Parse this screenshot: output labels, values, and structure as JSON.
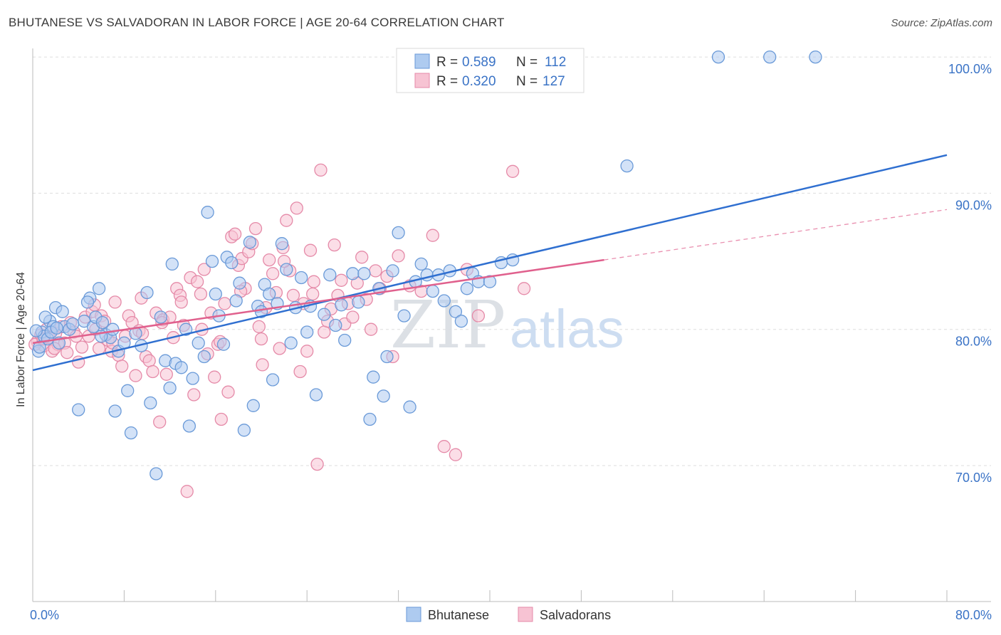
{
  "header": {
    "title": "BHUTANESE VS SALVADORAN IN LABOR FORCE | AGE 20-64 CORRELATION CHART",
    "source": "Source: ZipAtlas.com"
  },
  "watermark": "ZIPatlas",
  "legend_top": {
    "rows": [
      {
        "r_label": "R =",
        "r_value": "0.589",
        "n_label": "N =",
        "n_value": "112"
      },
      {
        "r_label": "R =",
        "r_value": "0.320",
        "n_label": "N =",
        "n_value": "127"
      }
    ]
  },
  "legend_bottom": {
    "items": [
      "Bhutanese",
      "Salvadorans"
    ]
  },
  "colors": {
    "blue_fill": "#aecbf0",
    "blue_stroke": "#6a9ad8",
    "blue_line": "#2f6fd0",
    "pink_fill": "#f7c3d3",
    "pink_stroke": "#e58aa8",
    "pink_line": "#e0608d",
    "tick_text": "#3a73c6",
    "grid": "#dddddd"
  },
  "chart_data": {
    "type": "scatter",
    "title": "BHUTANESE VS SALVADORAN IN LABOR FORCE | AGE 20-64 CORRELATION CHART",
    "xlabel": "",
    "ylabel": "In Labor Force | Age 20-64",
    "xlim": [
      0,
      80
    ],
    "ylim": [
      60,
      102
    ],
    "x_tick_labels": [
      "0.0%",
      "80.0%"
    ],
    "y_ticks": [
      70,
      80,
      90,
      100
    ],
    "y_tick_labels": [
      "70.0%",
      "80.0%",
      "90.0%",
      "100.0%"
    ],
    "grid": true,
    "legend_position": "top-center",
    "series": [
      {
        "name": "Bhutanese",
        "r": 0.589,
        "n": 112,
        "trend": {
          "x": [
            0,
            80
          ],
          "y": [
            77.0,
            92.8
          ]
        },
        "points": [
          [
            0.5,
            78.4
          ],
          [
            0.8,
            79.8
          ],
          [
            1.0,
            79.5
          ],
          [
            1.3,
            79.3
          ],
          [
            1.5,
            80.6
          ],
          [
            1.8,
            80.2
          ],
          [
            2.0,
            81.6
          ],
          [
            2.3,
            79.0
          ],
          [
            2.6,
            81.3
          ],
          [
            2.8,
            80.2
          ],
          [
            3.2,
            80.0
          ],
          [
            3.5,
            80.4
          ],
          [
            4.0,
            74.1
          ],
          [
            4.5,
            80.6
          ],
          [
            5.0,
            82.3
          ],
          [
            5.3,
            80.2
          ],
          [
            5.5,
            80.9
          ],
          [
            5.8,
            83.0
          ],
          [
            6.1,
            80.5
          ],
          [
            6.4,
            79.6
          ],
          [
            6.8,
            79.4
          ],
          [
            7.0,
            80.0
          ],
          [
            7.2,
            74.0
          ],
          [
            7.5,
            78.4
          ],
          [
            8.0,
            79.0
          ],
          [
            8.3,
            75.5
          ],
          [
            8.6,
            72.4
          ],
          [
            9.0,
            79.7
          ],
          [
            9.5,
            78.8
          ],
          [
            10.0,
            82.7
          ],
          [
            10.3,
            74.6
          ],
          [
            10.8,
            69.4
          ],
          [
            11.2,
            80.9
          ],
          [
            11.6,
            77.7
          ],
          [
            12.0,
            75.7
          ],
          [
            12.5,
            77.5
          ],
          [
            13.0,
            77.2
          ],
          [
            13.4,
            80.0
          ],
          [
            13.7,
            72.9
          ],
          [
            14.0,
            76.4
          ],
          [
            14.5,
            79.0
          ],
          [
            15.0,
            78.0
          ],
          [
            15.3,
            88.6
          ],
          [
            15.7,
            85.0
          ],
          [
            16.0,
            82.6
          ],
          [
            16.3,
            81.0
          ],
          [
            16.7,
            78.9
          ],
          [
            17.0,
            85.3
          ],
          [
            17.4,
            84.9
          ],
          [
            17.8,
            82.1
          ],
          [
            18.1,
            83.4
          ],
          [
            18.5,
            72.6
          ],
          [
            19.0,
            86.4
          ],
          [
            19.3,
            74.4
          ],
          [
            19.7,
            81.7
          ],
          [
            20.0,
            81.3
          ],
          [
            20.3,
            83.3
          ],
          [
            20.7,
            82.6
          ],
          [
            21.0,
            76.3
          ],
          [
            21.4,
            81.9
          ],
          [
            21.8,
            86.3
          ],
          [
            22.2,
            84.4
          ],
          [
            22.6,
            79.0
          ],
          [
            23.0,
            81.6
          ],
          [
            23.5,
            83.8
          ],
          [
            24.0,
            79.8
          ],
          [
            24.3,
            81.7
          ],
          [
            24.8,
            75.2
          ],
          [
            25.5,
            81.1
          ],
          [
            26.0,
            84.0
          ],
          [
            26.5,
            80.3
          ],
          [
            27.0,
            81.8
          ],
          [
            27.3,
            79.2
          ],
          [
            28.0,
            84.1
          ],
          [
            28.5,
            82.0
          ],
          [
            29.0,
            84.1
          ],
          [
            29.5,
            73.4
          ],
          [
            29.8,
            76.5
          ],
          [
            30.3,
            83.0
          ],
          [
            30.7,
            75.1
          ],
          [
            31.0,
            78.0
          ],
          [
            31.5,
            84.3
          ],
          [
            32.0,
            87.1
          ],
          [
            32.5,
            81.0
          ],
          [
            33.0,
            74.3
          ],
          [
            33.5,
            83.5
          ],
          [
            34.0,
            84.8
          ],
          [
            34.5,
            84.0
          ],
          [
            35.0,
            82.8
          ],
          [
            35.5,
            84.0
          ],
          [
            36.0,
            82.1
          ],
          [
            36.5,
            84.3
          ],
          [
            37.0,
            81.3
          ],
          [
            37.5,
            80.6
          ],
          [
            38.0,
            83.0
          ],
          [
            38.5,
            84.1
          ],
          [
            39.0,
            83.5
          ],
          [
            40.0,
            83.5
          ],
          [
            41.0,
            84.9
          ],
          [
            42.0,
            85.1
          ],
          [
            52.0,
            92.0
          ],
          [
            60.0,
            100.0
          ],
          [
            64.5,
            100.0
          ],
          [
            68.5,
            100.0
          ],
          [
            0.3,
            79.9
          ],
          [
            0.6,
            78.7
          ],
          [
            1.1,
            80.9
          ],
          [
            1.6,
            79.8
          ],
          [
            2.1,
            80.1
          ],
          [
            4.8,
            82.0
          ],
          [
            6.0,
            79.5
          ],
          [
            12.2,
            84.8
          ]
        ]
      },
      {
        "name": "Salvadorans",
        "r": 0.32,
        "n": 127,
        "trend": {
          "x": [
            0,
            50
          ],
          "y": [
            79.0,
            85.1
          ]
        },
        "trend_dashed": {
          "x": [
            50,
            80
          ],
          "y": [
            85.1,
            88.8
          ]
        },
        "points": [
          [
            0.4,
            79.1
          ],
          [
            0.7,
            79.6
          ],
          [
            1.0,
            78.8
          ],
          [
            1.2,
            80.0
          ],
          [
            1.4,
            79.4
          ],
          [
            1.7,
            78.4
          ],
          [
            2.0,
            79.7
          ],
          [
            2.2,
            78.9
          ],
          [
            2.5,
            80.2
          ],
          [
            2.8,
            79.0
          ],
          [
            3.0,
            78.3
          ],
          [
            3.3,
            80.5
          ],
          [
            3.6,
            79.8
          ],
          [
            4.0,
            77.6
          ],
          [
            4.3,
            78.7
          ],
          [
            4.6,
            80.9
          ],
          [
            4.9,
            79.5
          ],
          [
            5.2,
            81.3
          ],
          [
            5.5,
            80.0
          ],
          [
            5.8,
            78.6
          ],
          [
            6.0,
            81.0
          ],
          [
            6.3,
            80.6
          ],
          [
            6.6,
            79.2
          ],
          [
            6.9,
            78.4
          ],
          [
            7.2,
            82.0
          ],
          [
            7.5,
            78.1
          ],
          [
            7.8,
            77.3
          ],
          [
            8.1,
            79.5
          ],
          [
            8.4,
            81.0
          ],
          [
            8.7,
            80.5
          ],
          [
            9.0,
            76.6
          ],
          [
            9.3,
            79.9
          ],
          [
            9.6,
            79.7
          ],
          [
            9.9,
            78.0
          ],
          [
            10.2,
            77.7
          ],
          [
            10.5,
            76.9
          ],
          [
            10.8,
            81.2
          ],
          [
            11.1,
            73.2
          ],
          [
            11.4,
            80.7
          ],
          [
            11.7,
            76.7
          ],
          [
            12.0,
            80.9
          ],
          [
            12.3,
            79.4
          ],
          [
            12.6,
            83.0
          ],
          [
            12.9,
            82.5
          ],
          [
            13.2,
            80.3
          ],
          [
            13.5,
            68.1
          ],
          [
            13.8,
            83.8
          ],
          [
            14.1,
            75.2
          ],
          [
            14.4,
            83.5
          ],
          [
            14.7,
            82.6
          ],
          [
            15.0,
            84.4
          ],
          [
            15.3,
            78.2
          ],
          [
            15.6,
            81.2
          ],
          [
            15.9,
            76.5
          ],
          [
            16.2,
            78.9
          ],
          [
            16.5,
            73.4
          ],
          [
            16.8,
            81.9
          ],
          [
            17.1,
            75.4
          ],
          [
            17.4,
            86.8
          ],
          [
            17.7,
            87.0
          ],
          [
            18.0,
            84.7
          ],
          [
            18.3,
            85.2
          ],
          [
            18.6,
            83.0
          ],
          [
            18.9,
            85.7
          ],
          [
            19.2,
            86.3
          ],
          [
            19.5,
            87.4
          ],
          [
            19.8,
            80.2
          ],
          [
            20.1,
            77.4
          ],
          [
            20.4,
            81.6
          ],
          [
            20.7,
            85.1
          ],
          [
            21.0,
            84.1
          ],
          [
            21.3,
            82.7
          ],
          [
            21.6,
            78.6
          ],
          [
            21.9,
            86.0
          ],
          [
            22.2,
            88.0
          ],
          [
            22.5,
            84.3
          ],
          [
            22.8,
            82.5
          ],
          [
            23.1,
            88.9
          ],
          [
            23.4,
            76.9
          ],
          [
            23.7,
            81.9
          ],
          [
            24.0,
            78.4
          ],
          [
            24.3,
            85.8
          ],
          [
            24.6,
            83.5
          ],
          [
            24.9,
            70.1
          ],
          [
            25.2,
            91.7
          ],
          [
            25.5,
            79.8
          ],
          [
            25.8,
            80.6
          ],
          [
            26.1,
            81.5
          ],
          [
            26.4,
            86.2
          ],
          [
            26.7,
            82.5
          ],
          [
            27.0,
            83.6
          ],
          [
            27.3,
            80.4
          ],
          [
            27.6,
            81.9
          ],
          [
            28.0,
            80.9
          ],
          [
            28.4,
            83.4
          ],
          [
            28.8,
            85.3
          ],
          [
            29.2,
            82.2
          ],
          [
            29.6,
            80.0
          ],
          [
            30.0,
            84.3
          ],
          [
            30.4,
            83.0
          ],
          [
            31.0,
            83.9
          ],
          [
            31.5,
            78.0
          ],
          [
            32.0,
            85.4
          ],
          [
            33.0,
            83.2
          ],
          [
            34.0,
            82.8
          ],
          [
            35.0,
            86.9
          ],
          [
            36.0,
            71.4
          ],
          [
            37.0,
            70.8
          ],
          [
            38.0,
            84.4
          ],
          [
            39.0,
            81.0
          ],
          [
            42.0,
            91.6
          ],
          [
            43.0,
            83.0
          ],
          [
            0.2,
            78.9
          ],
          [
            0.9,
            79.3
          ],
          [
            1.9,
            78.6
          ],
          [
            3.8,
            79.5
          ],
          [
            5.4,
            81.8
          ],
          [
            7.0,
            79.0
          ],
          [
            9.5,
            82.3
          ],
          [
            11.3,
            80.5
          ],
          [
            13.0,
            82.0
          ],
          [
            14.8,
            80.0
          ],
          [
            16.4,
            79.1
          ],
          [
            18.2,
            82.8
          ],
          [
            20.0,
            79.3
          ],
          [
            22.0,
            85.0
          ],
          [
            24.5,
            82.6
          ]
        ]
      }
    ]
  }
}
